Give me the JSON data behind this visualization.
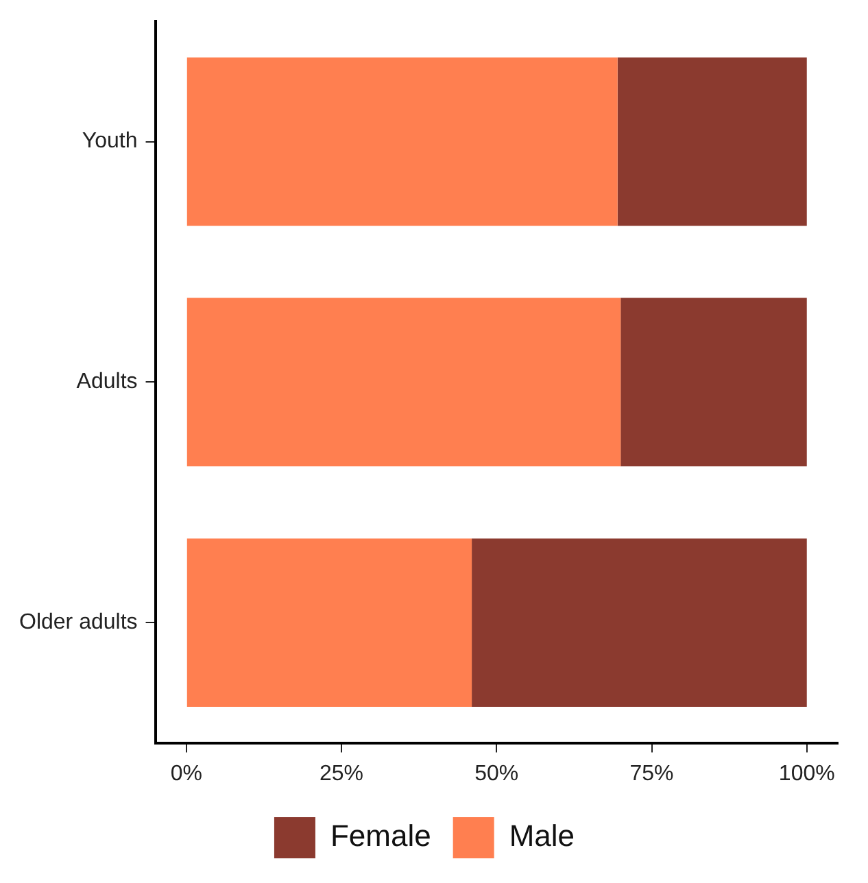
{
  "chart_data": {
    "type": "bar",
    "orientation": "horizontal",
    "stacked": true,
    "categories": [
      "Youth",
      "Adults",
      "Older adults"
    ],
    "series": [
      {
        "name": "Male",
        "color": "#ff7f50",
        "values": [
          69.5,
          70,
          46
        ]
      },
      {
        "name": "Female",
        "color": "#8b3a2f",
        "values": [
          30.5,
          30,
          54
        ]
      }
    ],
    "xlim": [
      -5,
      105
    ],
    "xticks": [
      {
        "value": 0,
        "label": "0%"
      },
      {
        "value": 25,
        "label": "25%"
      },
      {
        "value": 50,
        "label": "50%"
      },
      {
        "value": 75,
        "label": "75%"
      },
      {
        "value": 100,
        "label": "100%"
      }
    ],
    "grid": false,
    "legend": "bottom"
  }
}
